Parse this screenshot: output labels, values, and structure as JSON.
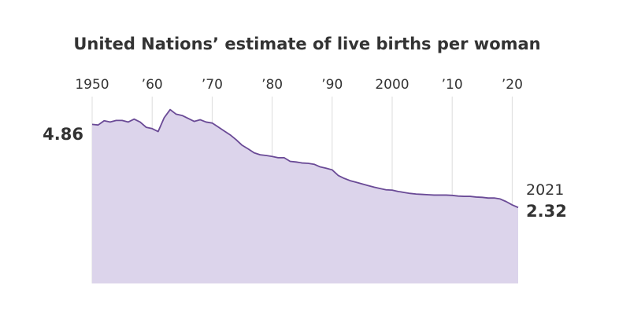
{
  "chart_data": {
    "type": "area",
    "title": "United Nations’ estimate of live births per woman",
    "xlabel": "",
    "ylabel": "",
    "xlim": [
      1950,
      2021
    ],
    "ylim": [
      0,
      5.3
    ],
    "grid": "vertical",
    "x_ticks": [
      {
        "value": 1950,
        "label": "1950"
      },
      {
        "value": 1960,
        "label": "’60"
      },
      {
        "value": 1970,
        "label": "’70"
      },
      {
        "value": 1980,
        "label": "’80"
      },
      {
        "value": 1990,
        "label": "’90"
      },
      {
        "value": 2000,
        "label": "2000"
      },
      {
        "value": 2010,
        "label": "’10"
      },
      {
        "value": 2020,
        "label": "’20"
      }
    ],
    "annotations": {
      "start_value": "4.86",
      "end_year": "2021",
      "end_value": "2.32"
    },
    "series": [
      {
        "x": [
          1950,
          1951,
          1952,
          1953,
          1954,
          1955,
          1956,
          1957,
          1958,
          1959,
          1960,
          1961,
          1962,
          1963,
          1964,
          1965,
          1966,
          1967,
          1968,
          1969,
          1970,
          1971,
          1972,
          1973,
          1974,
          1975,
          1976,
          1977,
          1978,
          1979,
          1980,
          1981,
          1982,
          1983,
          1984,
          1985,
          1986,
          1987,
          1988,
          1989,
          1990,
          1991,
          1992,
          1993,
          1994,
          1995,
          1996,
          1997,
          1998,
          1999,
          2000,
          2001,
          2002,
          2003,
          2004,
          2005,
          2006,
          2007,
          2008,
          2009,
          2010,
          2011,
          2012,
          2013,
          2014,
          2015,
          2016,
          2017,
          2018,
          2019,
          2020,
          2021
        ],
        "values": [
          4.86,
          4.84,
          4.97,
          4.93,
          4.98,
          4.98,
          4.93,
          5.02,
          4.93,
          4.77,
          4.73,
          4.64,
          5.06,
          5.31,
          5.17,
          5.13,
          5.04,
          4.95,
          5.0,
          4.93,
          4.9,
          4.78,
          4.66,
          4.54,
          4.39,
          4.22,
          4.11,
          3.99,
          3.93,
          3.91,
          3.88,
          3.84,
          3.84,
          3.73,
          3.71,
          3.68,
          3.67,
          3.64,
          3.56,
          3.52,
          3.47,
          3.3,
          3.21,
          3.14,
          3.09,
          3.04,
          2.99,
          2.94,
          2.9,
          2.86,
          2.85,
          2.81,
          2.78,
          2.75,
          2.73,
          2.72,
          2.71,
          2.7,
          2.7,
          2.7,
          2.69,
          2.67,
          2.66,
          2.66,
          2.64,
          2.63,
          2.61,
          2.61,
          2.58,
          2.5,
          2.4,
          2.32
        ],
        "fill_color": "#dcd4eb",
        "line_color": "#6a4a96"
      }
    ],
    "colors": {
      "grid": "#dcdcdc",
      "text": "#333333"
    }
  }
}
